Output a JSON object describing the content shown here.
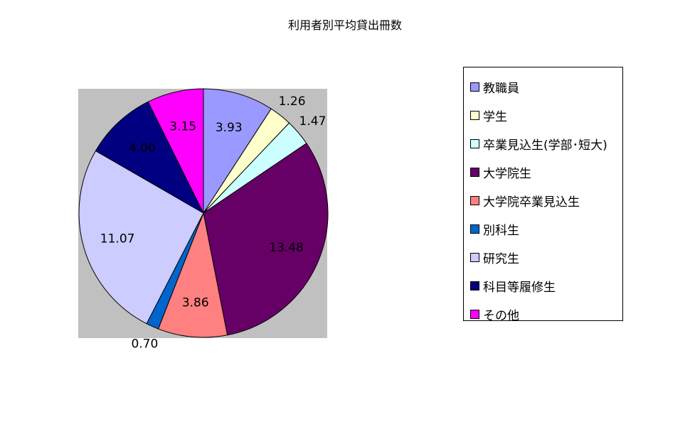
{
  "chart_data": {
    "type": "pie",
    "title": "利用者別平均貸出冊数",
    "start": "12 o'clock, clockwise",
    "legend_position": "right",
    "plot_background": "#C0C0C0",
    "slices": [
      {
        "label": "教職員",
        "value": 3.93,
        "display": "3.93",
        "color": "#9999FF"
      },
      {
        "label": "学生",
        "value": 1.26,
        "display": "1.26",
        "color": "#FFFFCC"
      },
      {
        "label": "卒業見込生(学部･短大)",
        "value": 1.47,
        "display": "1.47",
        "color": "#CCFFFF"
      },
      {
        "label": "大学院生",
        "value": 13.48,
        "display": "13.48",
        "color": "#660066"
      },
      {
        "label": "大学院卒業見込生",
        "value": 3.86,
        "display": "3.86",
        "color": "#FF8080"
      },
      {
        "label": "別科生",
        "value": 0.7,
        "display": "0.70",
        "color": "#0066CC"
      },
      {
        "label": "研究生",
        "value": 11.07,
        "display": "11.07",
        "color": "#CCCCFF"
      },
      {
        "label": "科目等履修生",
        "value": 4.0,
        "display": "4.00",
        "color": "#000080"
      },
      {
        "label": "その他",
        "value": 3.15,
        "display": "3.15",
        "color": "#FF00FF"
      }
    ]
  }
}
